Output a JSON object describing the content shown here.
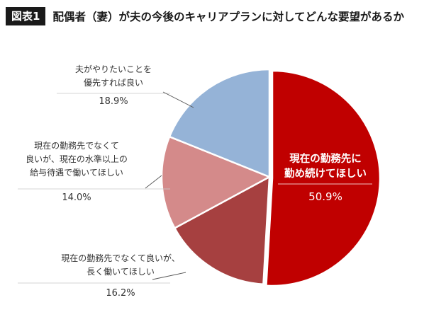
{
  "header": {
    "badge": "図表1",
    "title": "配偶者（妻）が夫の今後のキャリアプランに対してどんな要望があるか"
  },
  "chart_data": {
    "type": "pie",
    "title": "配偶者（妻）が夫の今後のキャリアプランに対してどんな要望があるか",
    "slices": [
      {
        "lines": [
          "現在の勤務先に",
          "勤め続けてほしい"
        ],
        "value": 50.9,
        "label": "50.9%",
        "color": "#c00000",
        "exploded": true,
        "inside": true
      },
      {
        "lines": [
          "現在の勤務先でなくて良いが、",
          "長く働いてほしい"
        ],
        "value": 16.2,
        "label": "16.2%",
        "color": "#a64040"
      },
      {
        "lines": [
          "現在の勤務先でなくて",
          "良いが、現在の水準以上の",
          "給与待遇で働いてほしい"
        ],
        "value": 14.0,
        "label": "14.0%",
        "color": "#d48a8a"
      },
      {
        "lines": [
          "夫がやりたいことを",
          "優先すれば良い"
        ],
        "value": 18.9,
        "label": "18.9%",
        "color": "#95b3d7"
      }
    ]
  }
}
